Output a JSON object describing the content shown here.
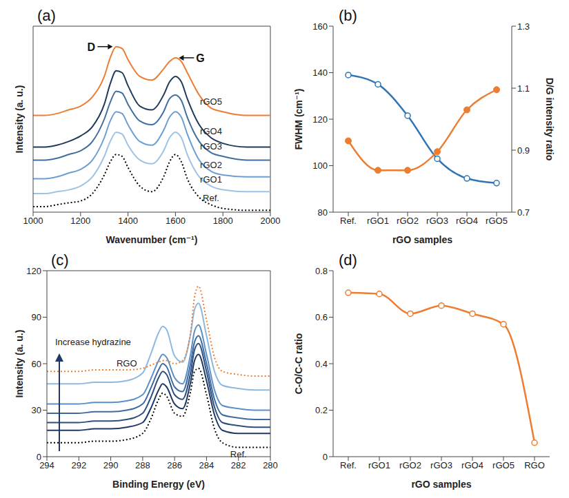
{
  "chart_data": [
    {
      "type": "line",
      "title": "(a)",
      "x_label": "Wavenumber (cm⁻¹)",
      "y_label": "Intensity (a. u.)",
      "x": [
        1000,
        1050,
        1100,
        1150,
        1200,
        1250,
        1300,
        1325,
        1350,
        1375,
        1400,
        1450,
        1500,
        1550,
        1575,
        1600,
        1625,
        1650,
        1700,
        1750,
        1800,
        1900,
        2000
      ],
      "xlim": [
        1000,
        2000
      ],
      "xticks": [
        1000,
        1200,
        1400,
        1600,
        1800,
        2000
      ],
      "ylim": [
        0,
        100
      ],
      "tick_labels": "x",
      "series": [
        {
          "name": "Ref.",
          "color": "#000000",
          "line_style": "dotted",
          "values": [
            3,
            3,
            4,
            5,
            6,
            10,
            20,
            27,
            31,
            30,
            24,
            14,
            11,
            19,
            27,
            31,
            27,
            18,
            8,
            4,
            2,
            1,
            1
          ]
        },
        {
          "name": "rGO1",
          "color": "#9dc3e6",
          "line_style": "solid",
          "values": [
            10,
            10,
            11,
            12,
            14,
            19,
            30,
            38,
            43,
            42,
            36,
            28,
            26,
            33,
            40,
            43,
            40,
            31,
            19,
            14,
            12,
            11,
            11
          ]
        },
        {
          "name": "rGO2",
          "color": "#6a9fd4",
          "line_style": "solid",
          "values": [
            18,
            18,
            19,
            21,
            23,
            28,
            40,
            49,
            54,
            53,
            47,
            38,
            36,
            44,
            51,
            54,
            51,
            42,
            28,
            22,
            20,
            19,
            19
          ]
        },
        {
          "name": "rGO3",
          "color": "#3f6e9f",
          "line_style": "solid",
          "values": [
            28,
            28,
            29,
            31,
            33,
            38,
            50,
            59,
            65,
            64,
            58,
            49,
            47,
            54,
            61,
            63,
            60,
            51,
            38,
            32,
            30,
            28,
            28
          ]
        },
        {
          "name": "rGO4",
          "color": "#1f3a5a",
          "line_style": "solid",
          "values": [
            35,
            35,
            36,
            38,
            41,
            46,
            58,
            69,
            76,
            75,
            68,
            57,
            55,
            63,
            70,
            73,
            70,
            61,
            47,
            40,
            37,
            35,
            35
          ]
        },
        {
          "name": "rGO5",
          "color": "#ed7d31",
          "line_style": "solid",
          "values": [
            52,
            52,
            53,
            55,
            57,
            62,
            73,
            83,
            89,
            88,
            82,
            73,
            71,
            77,
            81,
            83,
            81,
            75,
            63,
            56,
            54,
            52,
            52
          ]
        }
      ],
      "annotations": [
        {
          "text": "D",
          "x": 1350
        },
        {
          "text": "G",
          "x": 1600
        }
      ]
    },
    {
      "type": "line",
      "title": "(b)",
      "x_label": "rGO samples",
      "y_label": "FWHM (cm⁻¹)",
      "y2_label": "D/G intensity ratio",
      "categories": [
        "Ref.",
        "rGO1",
        "rGO2",
        "rGO3",
        "rGO4",
        "rGO5"
      ],
      "ylim": [
        80,
        160
      ],
      "yticks": [
        80,
        100,
        120,
        140,
        160
      ],
      "y2lim": [
        0.7,
        1.3
      ],
      "y2ticks": [
        0.7,
        0.9,
        1.1,
        1.3
      ],
      "series": [
        {
          "color": "#2e75b6",
          "marker": "open_circle",
          "values": [
            139,
            135,
            121.5,
            103,
            94.5,
            92.5
          ]
        },
        {
          "color": "#ed7d31",
          "marker": "filled_circle",
          "axis": "y2",
          "values": [
            0.93,
            0.835,
            0.835,
            0.895,
            1.03,
            1.095
          ]
        }
      ]
    },
    {
      "type": "line",
      "title": "(c)",
      "x_label": "Binding Energy (eV)",
      "y_label": "Intensity (a. u.)",
      "x": [
        294,
        293,
        292,
        291,
        290,
        289,
        288,
        287.5,
        287,
        286.75,
        286.5,
        286,
        285.5,
        285,
        284.75,
        284.5,
        284,
        283.5,
        283,
        282,
        281,
        280
      ],
      "xlim": [
        294,
        280
      ],
      "xticks": [
        294,
        292,
        290,
        288,
        286,
        284,
        282,
        280
      ],
      "ylim": [
        0,
        120
      ],
      "yticks": [
        0,
        30,
        60,
        90,
        120
      ],
      "series": [
        {
          "name": "Ref.",
          "color": "#000000",
          "line_style": "dotted",
          "values": [
            9,
            9,
            9,
            10,
            10,
            11,
            15,
            24,
            37,
            41,
            39,
            28,
            26,
            42,
            55,
            57,
            40,
            18,
            9,
            6,
            6,
            6
          ]
        },
        {
          "color": "#1f3864",
          "line_style": "solid",
          "values": [
            17,
            17,
            17,
            18,
            18,
            19,
            22,
            31,
            43,
            47,
            45,
            34,
            31,
            48,
            62,
            66,
            49,
            27,
            17,
            15,
            15,
            15
          ]
        },
        {
          "color": "#2c4f7c",
          "line_style": "solid",
          "values": [
            22,
            22,
            22,
            23,
            23,
            24,
            28,
            38,
            51,
            55,
            53,
            40,
            37,
            54,
            69,
            73,
            55,
            32,
            22,
            20,
            19,
            19
          ]
        },
        {
          "color": "#3e6aa0",
          "line_style": "solid",
          "values": [
            28,
            28,
            28,
            29,
            29,
            30,
            34,
            44,
            56,
            60,
            58,
            45,
            42,
            60,
            74,
            78,
            60,
            37,
            27,
            25,
            24,
            24
          ]
        },
        {
          "color": "#5b8fc9",
          "line_style": "solid",
          "values": [
            34,
            34,
            34,
            35,
            35,
            36,
            40,
            50,
            62,
            66,
            64,
            51,
            47,
            66,
            81,
            85,
            66,
            43,
            33,
            31,
            30,
            30
          ]
        },
        {
          "color": "#8db8e0",
          "line_style": "solid",
          "values": [
            47,
            47,
            47,
            48,
            48,
            49,
            54,
            66,
            80,
            84,
            82,
            65,
            61,
            79,
            95,
            99,
            78,
            55,
            46,
            44,
            43,
            43
          ]
        },
        {
          "name": "RGO",
          "color": "#ed7d31",
          "line_style": "dotted",
          "values": [
            55,
            55,
            55,
            56,
            56,
            56,
            57,
            59,
            61,
            62,
            62,
            60,
            62,
            80,
            103,
            110,
            88,
            64,
            55,
            53,
            52,
            52
          ]
        }
      ],
      "annotations": [
        {
          "text": "Increase hydrazine"
        }
      ]
    },
    {
      "type": "line",
      "title": "(d)",
      "x_label": "rGO samples",
      "y_label": "C-O/C-C ratio",
      "categories": [
        "Ref.",
        "rGO1",
        "rGO2",
        "rGO3",
        "rGO4",
        "rGO5",
        "RGO"
      ],
      "ylim": [
        0,
        0.8
      ],
      "yticks": [
        0,
        0.2,
        0.4,
        0.6,
        0.8
      ],
      "series": [
        {
          "color": "#ed7d31",
          "marker": "open_circle",
          "values": [
            0.705,
            0.7,
            0.615,
            0.65,
            0.615,
            0.57,
            0.06
          ]
        }
      ]
    }
  ]
}
